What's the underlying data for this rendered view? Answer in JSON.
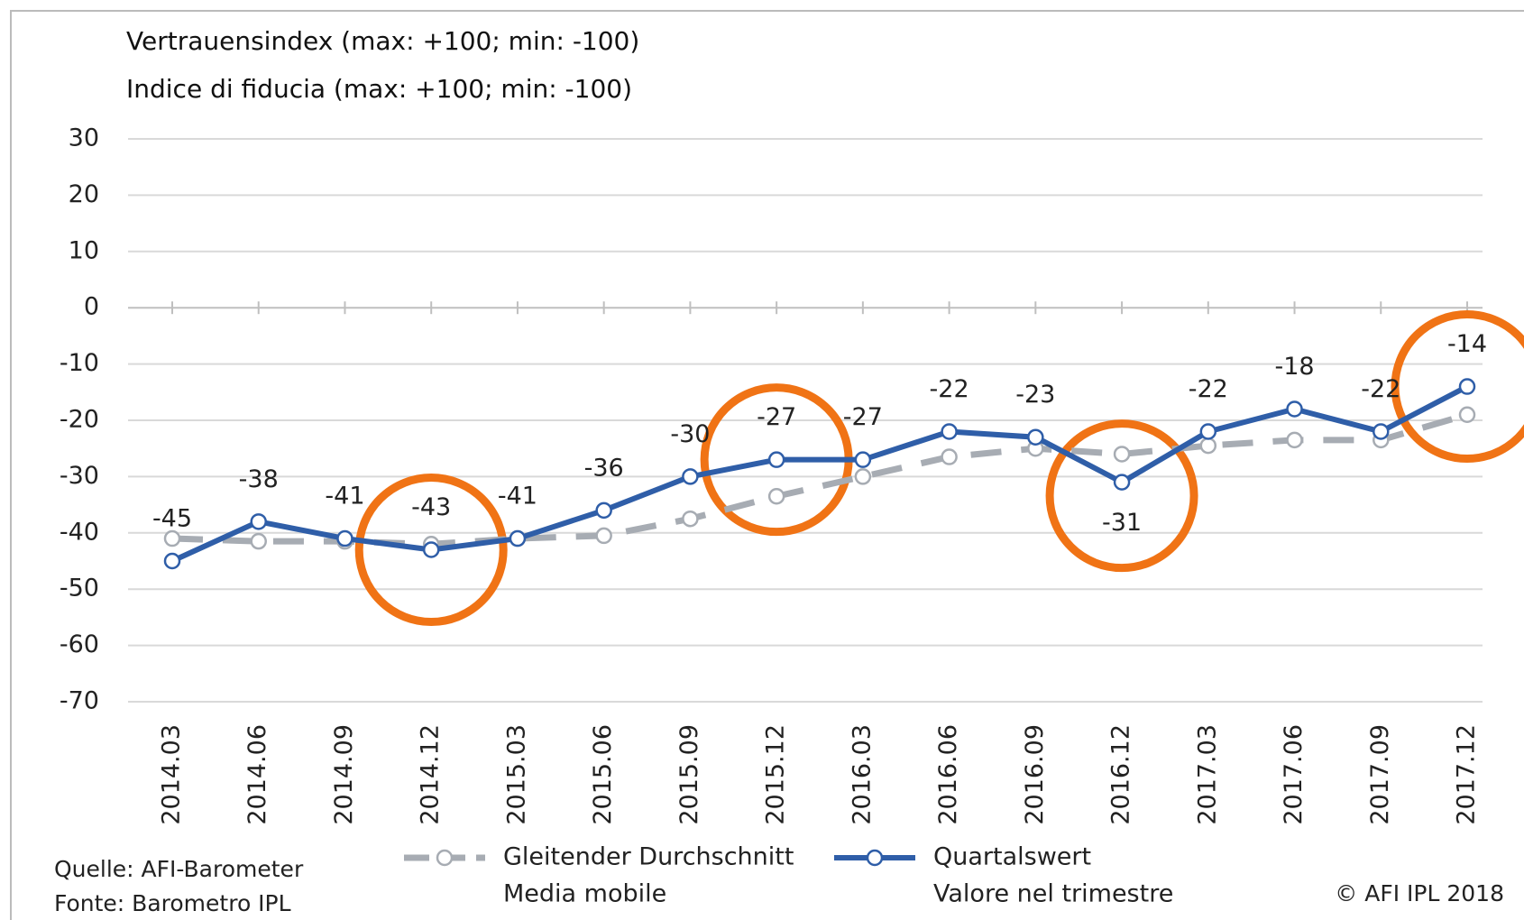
{
  "chart_data": {
    "type": "line",
    "title": [
      "Vertrauensindex (max: +100; min: -100)",
      "Indice di fiducia (max: +100; min: -100)"
    ],
    "categories": [
      "2014.03",
      "2014.06",
      "2014.09",
      "2014.12",
      "2015.03",
      "2015.06",
      "2015.09",
      "2015.12",
      "2016.03",
      "2016.06",
      "2016.09",
      "2016.12",
      "2017.03",
      "2017.06",
      "2017.09",
      "2017.12"
    ],
    "series": [
      {
        "name": [
          "Gleitender Durchschnitt",
          "Media mobile"
        ],
        "color": "#a7acb3",
        "dashed": true,
        "data_labels": false,
        "values": [
          -41,
          -41.5,
          -41.5,
          -42,
          -41,
          -40.5,
          -37.5,
          -33.5,
          -30,
          -26.5,
          -25,
          -26,
          -24.5,
          -23.5,
          -23.5,
          -19
        ]
      },
      {
        "name": [
          "Quartalswert",
          "Valore nel trimestre"
        ],
        "color": "#2f5ea8",
        "dashed": false,
        "data_labels": true,
        "values": [
          -45,
          -38,
          -41,
          -43,
          -41,
          -36,
          -30,
          -27,
          -27,
          -22,
          -23,
          -31,
          -22,
          -18,
          -22,
          -14
        ]
      }
    ],
    "ylim": [
      -70,
      30
    ],
    "yticks": [
      -70,
      -60,
      -50,
      -40,
      -30,
      -20,
      -10,
      0,
      10,
      20,
      30
    ],
    "grid": true,
    "highlight_color": "#f07315",
    "source": [
      "Quelle: AFI-Barometer",
      "Fonte: Barometro IPL"
    ],
    "copyright": "© AFI IPL 2018"
  }
}
